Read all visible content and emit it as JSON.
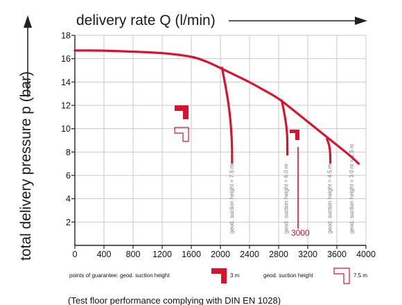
{
  "chart_data": {
    "type": "line",
    "xlabel": "delivery rate Q (l/min)",
    "ylabel": "total delivery pressure p (bar)",
    "xlim": [
      0,
      4000
    ],
    "ylim": [
      0,
      18
    ],
    "x_ticks": [
      "0",
      "400",
      "800",
      "1200",
      "1600",
      "2000",
      "2400",
      "2800",
      "3200",
      "3600",
      "4000"
    ],
    "y_ticks": [
      "2",
      "4",
      "6",
      "8",
      "10",
      "12",
      "14",
      "16",
      "18"
    ],
    "grid": true,
    "series": [
      {
        "x": [
          0,
          400,
          800,
          1200,
          1600,
          1800,
          2000,
          2200,
          2400,
          2600,
          2800,
          3000,
          3200,
          3400,
          3600,
          3800,
          3900
        ],
        "values": [
          16.7,
          16.7,
          16.6,
          16.5,
          16.2,
          15.8,
          15.2,
          14.6,
          14.0,
          13.3,
          12.6,
          11.6,
          10.6,
          9.6,
          8.6,
          7.6,
          7.0
        ]
      }
    ],
    "suction_curves": [
      {
        "label": "geod. suction height = 7.5 m",
        "x": [
          2020,
          2120,
          2160,
          2160
        ],
        "values": [
          15.3,
          12.0,
          9.0,
          7.0
        ]
      },
      {
        "label": "geod. suction height = 6.0 m",
        "x": [
          2840,
          2890,
          2920,
          2920
        ],
        "values": [
          12.5,
          11.0,
          9.5,
          7.7
        ]
      },
      {
        "label": "geod. suction height = 4.5 m",
        "x": [
          3460,
          3500,
          3510,
          3510
        ],
        "values": [
          9.2,
          8.5,
          7.8,
          7.0
        ]
      },
      {
        "label": "geod. suction height = 3.0 m = 1.5 m",
        "x": [],
        "values": []
      }
    ],
    "annotations": [
      {
        "text": "3000",
        "x": 3000,
        "y": 2.0
      }
    ],
    "legend": {
      "points_label": "points of guarantee: geod. suction height",
      "filled_value": "3 m",
      "outline_label": "geod. suction height",
      "outline_value": "7.5 m"
    },
    "footer": "(Test floor performance complying with DIN EN 1028)",
    "colors": {
      "curve": "#d8132f",
      "grid": "#c8c8c8",
      "axis": "#222222"
    }
  }
}
